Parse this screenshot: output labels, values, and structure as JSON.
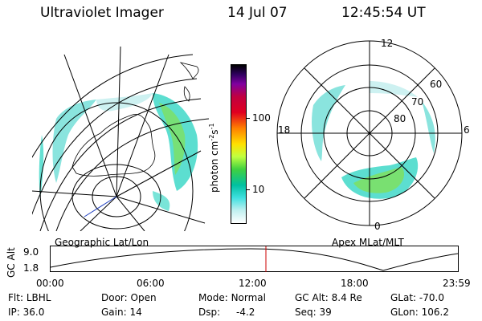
{
  "header": {
    "title": "Ultraviolet Imager",
    "date": "14 Jul 07",
    "time": "12:45:54 UT"
  },
  "left_panel": {
    "caption": "Geographic Lat/Lon"
  },
  "right_panel": {
    "caption": "Apex MLat/MLT",
    "mlt_labels": [
      "12",
      "18",
      "6",
      "0"
    ],
    "lat_labels": [
      "60",
      "70",
      "80"
    ]
  },
  "colorbar": {
    "label_main": "photon cm",
    "label_exp1": "-2",
    "label_s": "s",
    "label_exp2": "-1",
    "ticks": [
      "100",
      "10"
    ]
  },
  "altitude_strip": {
    "ylabel": "GC Alt",
    "yticks": [
      "9.0",
      "1.8"
    ],
    "xticks": [
      "00:00",
      "06:00",
      "12:00",
      "18:00",
      "23:59"
    ],
    "marker_color": "#cc0000"
  },
  "info": {
    "row1": [
      {
        "label": "Flt:",
        "value": "LBHL"
      },
      {
        "label": "Door:",
        "value": "Open"
      },
      {
        "label": "Mode:",
        "value": "Normal"
      },
      {
        "label": "GC Alt:",
        "value": "8.4 Re"
      },
      {
        "label": "GLat:",
        "value": "-70.0"
      }
    ],
    "row2": [
      {
        "label": "IP:",
        "value": "36.0"
      },
      {
        "label": "Gain:",
        "value": "14"
      },
      {
        "label": "Dsp:",
        "value": "-4.2"
      },
      {
        "label": "Seq:",
        "value": "39"
      },
      {
        "label": "GLon:",
        "value": "106.2"
      }
    ]
  }
}
